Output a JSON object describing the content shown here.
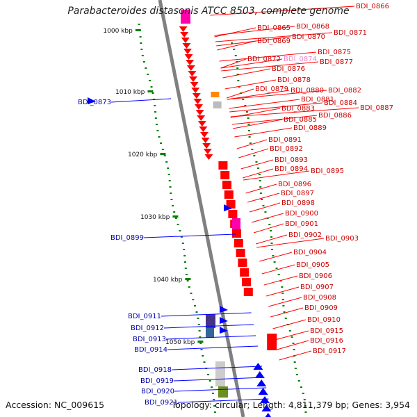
{
  "title": "Parabacteroides distasonis ATCC 8503, complete genome",
  "accession": "Accession: NC_009615",
  "summary": "Topology: circular; Length: 4,811,379 bp; Genes: 3,954",
  "kbp_ticks": [
    {
      "label": "1000 kbp"
    },
    {
      "label": "1010 kbp"
    },
    {
      "label": "1020 kbp"
    },
    {
      "label": "1030 kbp"
    },
    {
      "label": "1040 kbp"
    },
    {
      "label": "1050 kbp"
    }
  ],
  "red_genes": [
    "BDI_0866",
    "BDI_0865",
    "BDI_0868",
    "BDI_0871",
    "BDI_0869",
    "BDI_0870",
    "BDI_0875",
    "BDI_0872",
    "BDI_0874",
    "BDI_0877",
    "BDI_0876",
    "BDI_0878",
    "BDI_0879",
    "BDI_0880",
    "BDI_0882",
    "BDI_0881",
    "BDI_0884",
    "BDI_0887",
    "BDI_0883",
    "BDI_0886",
    "BDI_0885",
    "BDI_0889",
    "BDI_0891",
    "BDI_0892",
    "BDI_0893",
    "BDI_0894",
    "BDI_0895",
    "BDI_0896",
    "BDI_0897",
    "BDI_0898",
    "BDI_0900",
    "BDI_0901",
    "BDI_0902",
    "BDI_0903",
    "BDI_0904",
    "BDI_0905",
    "BDI_0906",
    "BDI_0907",
    "BDI_0908",
    "BDI_0909",
    "BDI_0910",
    "BDI_0915",
    "BDI_0916",
    "BDI_0917"
  ],
  "blue_genes": [
    "BDI_0873",
    "BDI_0899",
    "BDI_0911",
    "BDI_0912",
    "BDI_0913",
    "BDI_0914",
    "BDI_0918",
    "BDI_0919",
    "BDI_0920",
    "BDI_0921"
  ],
  "colors": {
    "forward_strand": "#ff0000",
    "reverse_strand": "#0000ff",
    "rna_gene": "#ff00aa",
    "backbone": "#808080",
    "gc_dots": "#008000",
    "red_label": "#cc0000",
    "blue_label": "#0000aa",
    "pink_label": "#ee88cc"
  }
}
